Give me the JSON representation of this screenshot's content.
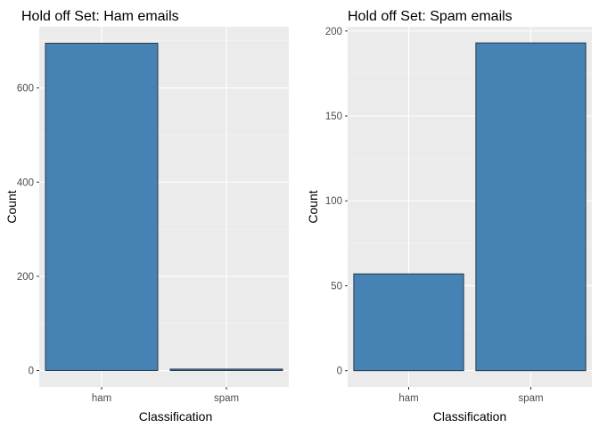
{
  "colors": {
    "panel_background": "#ebebeb",
    "grid_major": "#ffffff",
    "grid_minor": "#f5f5f5",
    "bar_fill": "#4682b4",
    "bar_outline": "#1f2f3f",
    "tick_text": "#4d4d4d"
  },
  "chart_data": [
    {
      "type": "bar",
      "title": "Hold off Set: Ham emails",
      "xlabel": "Classification",
      "ylabel": "Count",
      "categories": [
        "ham",
        "spam"
      ],
      "values": [
        695,
        3
      ],
      "ylim": [
        -35,
        730
      ],
      "yticks": [
        0,
        200,
        400,
        600
      ],
      "grid": true
    },
    {
      "type": "bar",
      "title": "Hold off Set: Spam emails",
      "xlabel": "Classification",
      "ylabel": "Count",
      "categories": [
        "ham",
        "spam"
      ],
      "values": [
        57,
        193
      ],
      "ylim": [
        -9.6,
        202.5
      ],
      "yticks": [
        0,
        50,
        100,
        150,
        200
      ],
      "grid": true
    }
  ]
}
